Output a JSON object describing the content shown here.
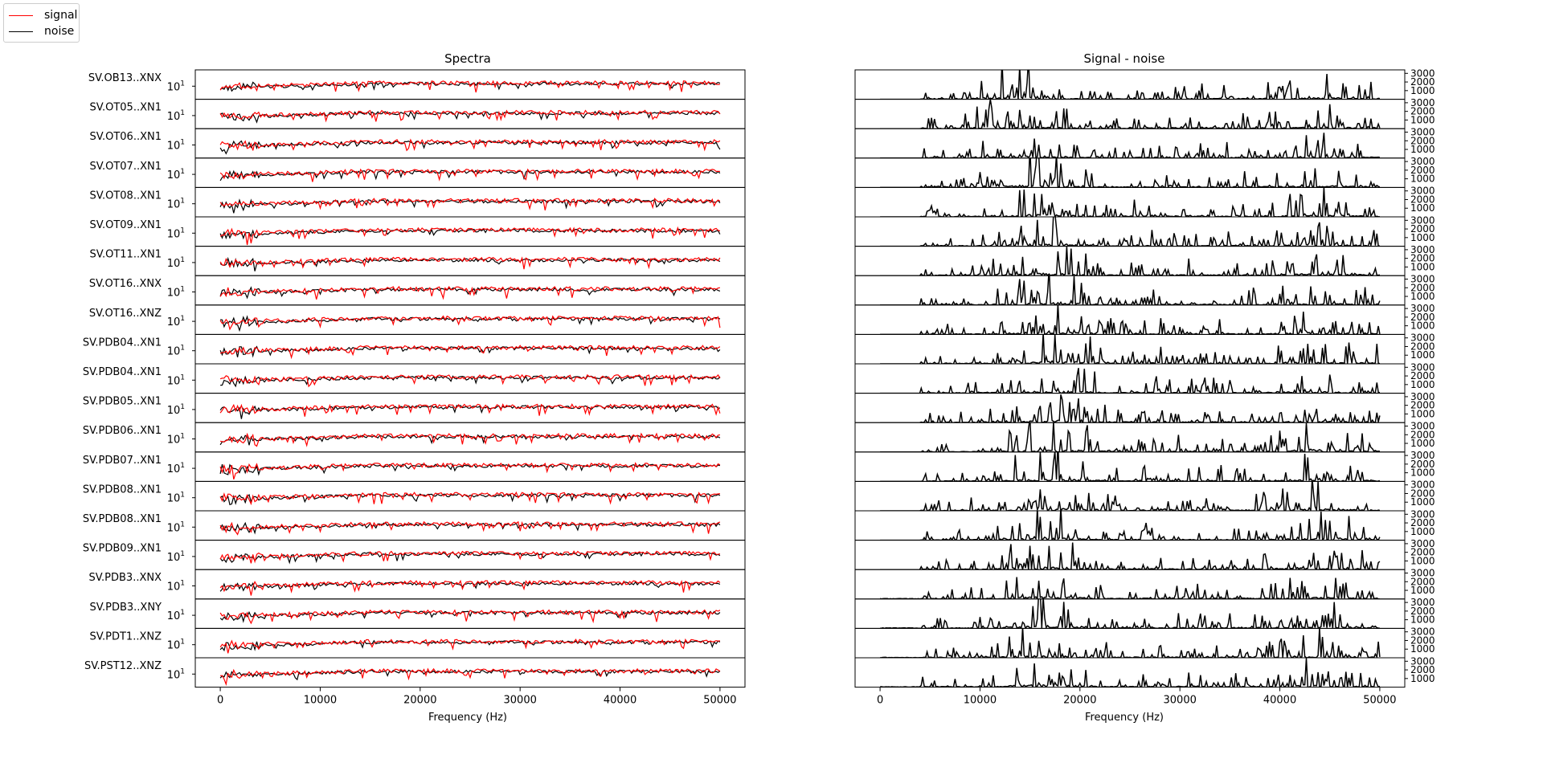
{
  "legend": {
    "items": [
      {
        "label": "signal",
        "color": "#ff0000"
      },
      {
        "label": "noise",
        "color": "#000000"
      }
    ]
  },
  "chart_data": [
    {
      "type": "line",
      "title": "Spectra",
      "xlabel": "Frequency (Hz)",
      "ylabel": "",
      "xlim": [
        -2500,
        52500
      ],
      "x_ticks": [
        0,
        10000,
        20000,
        30000,
        40000,
        50000
      ],
      "y_scale": "log",
      "y_tick_label": "10^1",
      "series": [
        {
          "name": "signal",
          "color": "#ff0000"
        },
        {
          "name": "noise",
          "color": "#000000"
        }
      ],
      "traces": [
        "SV.OB13..XNX",
        "SV.OT05..XN1",
        "SV.OT06..XN1",
        "SV.OT07..XN1",
        "SV.OT08..XN1",
        "SV.OT09..XN1",
        "SV.OT11..XN1",
        "SV.OT16..XNX",
        "SV.OT16..XNZ",
        "SV.PDB04..XN1",
        "SV.PDB04..XN1",
        "SV.PDB05..XN1",
        "SV.PDB06..XN1",
        "SV.PDB07..XN1",
        "SV.PDB08..XN1",
        "SV.PDB08..XN1",
        "SV.PDB09..XN1",
        "SV.PDB3..XNX",
        "SV.PDB3..XNY",
        "SV.PDT1..XNZ",
        "SV.PST12..XNZ"
      ]
    },
    {
      "type": "line",
      "title": "Signal - noise",
      "xlabel": "Frequency (Hz)",
      "ylabel": "",
      "xlim": [
        -2500,
        52500
      ],
      "ylim": [
        0,
        3400
      ],
      "x_ticks": [
        0,
        10000,
        20000,
        30000,
        40000,
        50000
      ],
      "y_ticks": [
        1000,
        2000,
        3000
      ],
      "y_axis_side": "right",
      "series_color": "#000000",
      "panel_count": 21
    }
  ]
}
